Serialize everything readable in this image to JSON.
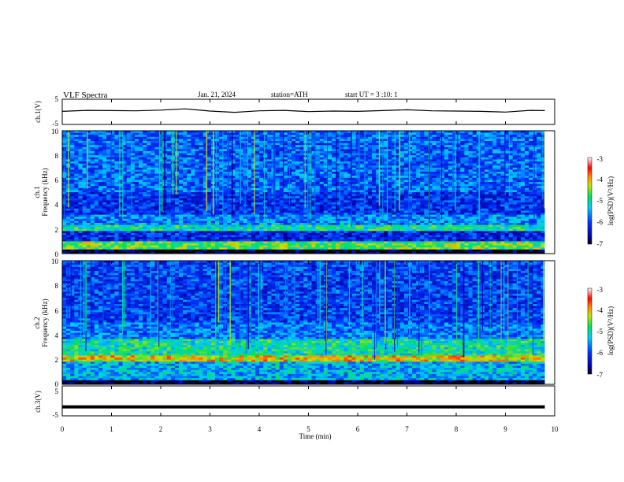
{
  "header": {
    "title": "VLF Spectra",
    "date": "Jan. 21, 2024",
    "station": "station=ATH",
    "start_ut": "start UT =   3 :10: 1"
  },
  "chart_data": [
    {
      "type": "line",
      "name": "ch1-voltage",
      "ylabel": "ch.1(V)",
      "ylim": [
        -5,
        5
      ],
      "yticks": [
        "5",
        "-5"
      ],
      "xlim": [
        0,
        10
      ],
      "x": [
        0,
        0.5,
        1,
        1.5,
        2,
        2.5,
        3,
        3.5,
        4,
        4.5,
        5,
        5.5,
        6,
        6.5,
        7,
        7.5,
        8,
        8.5,
        9,
        9.5,
        9.8
      ],
      "y": [
        0.2,
        0.6,
        0.5,
        0.4,
        0.7,
        1.2,
        0.3,
        -0.2,
        0.4,
        0.6,
        0.1,
        0.3,
        0.2,
        0.5,
        0.8,
        0.4,
        0.3,
        0.2,
        -0.1,
        0.6,
        0.5
      ]
    },
    {
      "type": "heatmap",
      "name": "ch1-spectrogram",
      "ylabel_top": "ch.1",
      "ylabel": "Frequency (kHz)",
      "ylim": [
        0,
        10
      ],
      "yticks": [
        "0",
        "2",
        "4",
        "6",
        "8",
        "10"
      ],
      "xlim": [
        0,
        9.8
      ],
      "colorbar": {
        "label": "log(PSD)(V²/Hz)",
        "range": [
          -7,
          -3
        ],
        "ticks": [
          "-3",
          "-4",
          "-5",
          "-6",
          "-7"
        ]
      },
      "bands_khz": [
        {
          "from": 0,
          "to": 0.4,
          "level": -6.9
        },
        {
          "from": 0.4,
          "to": 1.0,
          "level": -4.6
        },
        {
          "from": 1.0,
          "to": 1.9,
          "level": -6.2
        },
        {
          "from": 1.9,
          "to": 2.3,
          "level": -5.0
        },
        {
          "from": 2.3,
          "to": 3.2,
          "level": -5.6
        },
        {
          "from": 3.2,
          "to": 5.0,
          "level": -6.1
        },
        {
          "from": 5.0,
          "to": 10,
          "level": -5.8
        }
      ]
    },
    {
      "type": "heatmap",
      "name": "ch2-spectrogram",
      "ylabel_top": "ch.2",
      "ylabel": "Frequency (kHz)",
      "ylim": [
        0,
        10
      ],
      "yticks": [
        "0",
        "2",
        "4",
        "6",
        "8",
        "10"
      ],
      "xlim": [
        0,
        9.8
      ],
      "colorbar": {
        "label": "log(PSD)(V²/Hz)",
        "range": [
          -7,
          -3
        ],
        "ticks": [
          "-3",
          "-4",
          "-5",
          "-6",
          "-7"
        ]
      },
      "bands_khz": [
        {
          "from": 0,
          "to": 0.4,
          "level": -6.9
        },
        {
          "from": 0.4,
          "to": 1.8,
          "level": -5.4
        },
        {
          "from": 1.8,
          "to": 2.3,
          "level": -4.2
        },
        {
          "from": 2.3,
          "to": 3.6,
          "level": -5.0
        },
        {
          "from": 3.6,
          "to": 5.0,
          "level": -5.7
        },
        {
          "from": 5.0,
          "to": 10,
          "level": -6.0
        }
      ]
    },
    {
      "type": "line",
      "name": "ch3-voltage",
      "ylabel": "ch.3(V)",
      "ylim": [
        -5,
        5
      ],
      "yticks": [
        "5",
        "-5"
      ],
      "xlim": [
        0,
        10
      ],
      "x": [
        0,
        9.8
      ],
      "y": [
        -2,
        -2
      ]
    }
  ],
  "xaxis": {
    "label": "Time  (min)",
    "ticks": [
      "0",
      "1",
      "2",
      "3",
      "4",
      "5",
      "6",
      "7",
      "8",
      "9",
      "10"
    ]
  },
  "colors": {
    "line": "#000000",
    "frame": "#000000",
    "background": "#ffffff"
  }
}
